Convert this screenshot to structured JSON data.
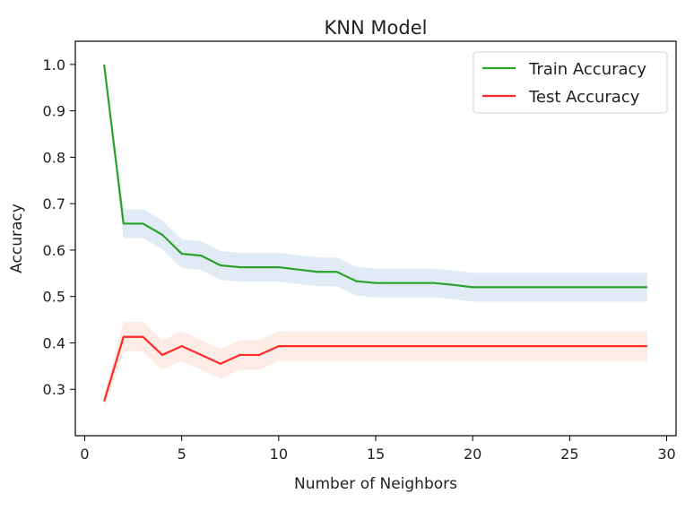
{
  "chart_data": {
    "type": "line",
    "title": "KNN Model",
    "xlabel": "Number of Neighbors",
    "ylabel": "Accuracy",
    "xlim": [
      0,
      30
    ],
    "ylim": [
      0.2,
      1.05
    ],
    "xticks": [
      0,
      5,
      10,
      15,
      20,
      25,
      30
    ],
    "yticks": [
      0.3,
      0.4,
      0.5,
      0.6,
      0.7,
      0.8,
      0.9,
      1.0
    ],
    "grid": false,
    "legend_position": "top-right",
    "x": [
      1,
      2,
      3,
      4,
      5,
      6,
      7,
      8,
      9,
      10,
      11,
      12,
      13,
      14,
      15,
      16,
      17,
      18,
      19,
      20,
      21,
      22,
      23,
      24,
      25,
      26,
      27,
      28,
      29
    ],
    "series": [
      {
        "name": "Train Accuracy",
        "color": "#2ca02c",
        "band_color": "#dce8f3",
        "values": [
          1.0,
          0.657,
          0.657,
          0.633,
          0.592,
          0.588,
          0.567,
          0.563,
          0.563,
          0.563,
          0.558,
          0.553,
          0.553,
          0.533,
          0.529,
          0.529,
          0.529,
          0.529,
          0.525,
          0.52,
          0.52,
          0.52,
          0.52,
          0.52,
          0.52,
          0.52,
          0.52,
          0.52,
          0.52
        ],
        "band_lower": [
          1.0,
          0.626,
          0.626,
          0.602,
          0.561,
          0.557,
          0.536,
          0.532,
          0.532,
          0.532,
          0.527,
          0.522,
          0.522,
          0.502,
          0.498,
          0.498,
          0.498,
          0.498,
          0.494,
          0.489,
          0.489,
          0.489,
          0.489,
          0.489,
          0.489,
          0.489,
          0.489,
          0.489,
          0.489
        ],
        "band_upper": [
          1.0,
          0.688,
          0.688,
          0.664,
          0.623,
          0.619,
          0.598,
          0.594,
          0.594,
          0.594,
          0.589,
          0.584,
          0.584,
          0.564,
          0.56,
          0.56,
          0.56,
          0.56,
          0.556,
          0.551,
          0.551,
          0.551,
          0.551,
          0.551,
          0.551,
          0.551,
          0.551,
          0.551,
          0.551
        ]
      },
      {
        "name": "Test Accuracy",
        "color": "#ff2a2a",
        "band_color": "#fde9e0",
        "values": [
          0.274,
          0.413,
          0.413,
          0.374,
          0.393,
          0.374,
          0.355,
          0.374,
          0.374,
          0.393,
          0.393,
          0.393,
          0.393,
          0.393,
          0.393,
          0.393,
          0.393,
          0.393,
          0.393,
          0.393,
          0.393,
          0.393,
          0.393,
          0.393,
          0.393,
          0.393,
          0.393,
          0.393,
          0.393
        ],
        "band_lower": [
          0.257,
          0.381,
          0.381,
          0.342,
          0.361,
          0.342,
          0.323,
          0.342,
          0.342,
          0.361,
          0.361,
          0.361,
          0.361,
          0.361,
          0.361,
          0.361,
          0.361,
          0.361,
          0.361,
          0.361,
          0.361,
          0.361,
          0.361,
          0.361,
          0.361,
          0.361,
          0.361,
          0.361,
          0.361
        ],
        "band_upper": [
          0.291,
          0.445,
          0.445,
          0.406,
          0.425,
          0.406,
          0.387,
          0.406,
          0.406,
          0.425,
          0.425,
          0.425,
          0.425,
          0.425,
          0.425,
          0.425,
          0.425,
          0.425,
          0.425,
          0.425,
          0.425,
          0.425,
          0.425,
          0.425,
          0.425,
          0.425,
          0.425,
          0.425,
          0.425
        ]
      }
    ]
  }
}
